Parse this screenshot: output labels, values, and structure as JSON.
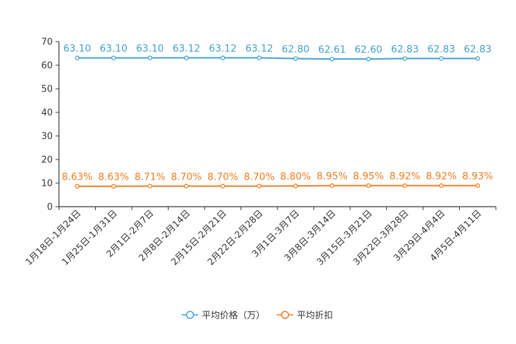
{
  "chart_data": {
    "type": "line",
    "categories": [
      "1月18日-1月24日",
      "1月25日-1月31日",
      "2月1日-2月7日",
      "2月8日-2月14日",
      "2月15日-2月21日",
      "2月22日-2月28日",
      "3月1日-3月7日",
      "3月8日-3月14日",
      "3月15日-3月21日",
      "3月22日-3月28日",
      "3月29日-4月4日",
      "4月5日-4月11日"
    ],
    "ylim": [
      0,
      70
    ],
    "yticks": [
      0,
      10,
      20,
      30,
      40,
      50,
      60,
      70
    ],
    "series": [
      {
        "name": "平均价格（万）",
        "color": "#3fa0d0",
        "values": [
          63.1,
          63.1,
          63.1,
          63.12,
          63.12,
          63.12,
          62.8,
          62.61,
          62.6,
          62.83,
          62.83,
          62.83
        ],
        "labels": [
          "63.10",
          "63.10",
          "63.10",
          "63.12",
          "63.12",
          "63.12",
          "62.80",
          "62.61",
          "62.60",
          "62.83",
          "62.83",
          "62.83"
        ]
      },
      {
        "name": "平均折扣",
        "color": "#f07c1e",
        "values": [
          8.63,
          8.63,
          8.71,
          8.7,
          8.7,
          8.7,
          8.8,
          8.95,
          8.95,
          8.92,
          8.92,
          8.93
        ],
        "labels": [
          "8.63%",
          "8.63%",
          "8.71%",
          "8.70%",
          "8.70%",
          "8.70%",
          "8.80%",
          "8.95%",
          "8.95%",
          "8.92%",
          "8.92%",
          "8.93%"
        ]
      }
    ],
    "legend_position": "bottom"
  }
}
